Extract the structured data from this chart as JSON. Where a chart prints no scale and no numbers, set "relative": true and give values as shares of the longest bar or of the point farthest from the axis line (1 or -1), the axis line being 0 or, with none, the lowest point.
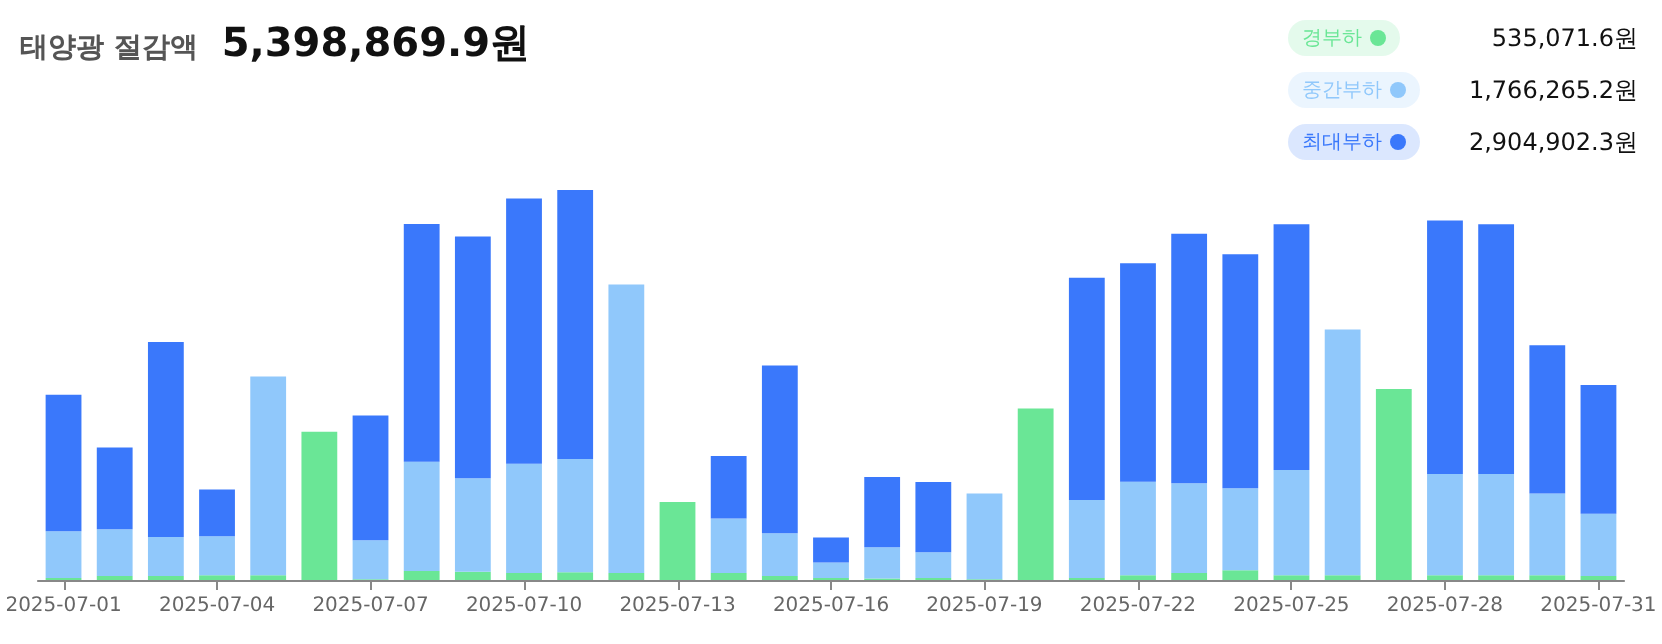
{
  "chart_data": {
    "type": "bar",
    "title": "태양광 절감액",
    "subtitle": "5,398,869.9원",
    "relative": true,
    "stacked": true,
    "legend": "top right",
    "annotations": [
      "535,071.6원",
      "1,766,265.2원",
      "2,904,902.3원"
    ],
    "categories": [
      "2025-07-01",
      null,
      null,
      "2025-07-04",
      null,
      null,
      "2025-07-07",
      null,
      null,
      "2025-07-10",
      null,
      null,
      "2025-07-13",
      null,
      null,
      "2025-07-16",
      null,
      null,
      "2025-07-19",
      null,
      null,
      "2025-07-22",
      null,
      null,
      "2025-07-25",
      null,
      null,
      "2025-07-28",
      null,
      null,
      "2025-07-31"
    ],
    "series": [
      {
        "name": "경부하",
        "color": "#6ae696",
        "values": [
          0.005,
          0.01,
          0.01,
          0.012,
          0.012,
          0.38,
          0.002,
          0.023,
          0.021,
          0.018,
          0.02,
          0.018,
          0.2,
          0.018,
          0.01,
          0.005,
          0.004,
          0.005,
          0.002,
          0.44,
          0.005,
          0.012,
          0.018,
          0.025,
          0.012,
          0.012,
          0.49,
          0.012,
          0.012,
          0.012,
          0.01
        ]
      },
      {
        "name": "중간부하",
        "color": "#90c8fb",
        "values": [
          0.12,
          0.12,
          0.1,
          0.1,
          0.51,
          0,
          0.1,
          0.28,
          0.24,
          0.28,
          0.29,
          0.74,
          0,
          0.14,
          0.11,
          0.04,
          0.08,
          0.066,
          0.22,
          0,
          0.2,
          0.24,
          0.23,
          0.21,
          0.27,
          0.63,
          0,
          0.26,
          0.26,
          0.21,
          0.16
        ]
      },
      {
        "name": "최대부하",
        "color": "#3a78fb",
        "values": [
          0.35,
          0.21,
          0.5,
          0.12,
          0,
          0,
          0.32,
          0.61,
          0.62,
          0.68,
          0.69,
          0,
          0,
          0.16,
          0.43,
          0.064,
          0.18,
          0.18,
          0,
          0,
          0.57,
          0.56,
          0.64,
          0.6,
          0.63,
          0,
          0,
          0.65,
          0.64,
          0.38,
          0.33
        ]
      }
    ]
  }
}
